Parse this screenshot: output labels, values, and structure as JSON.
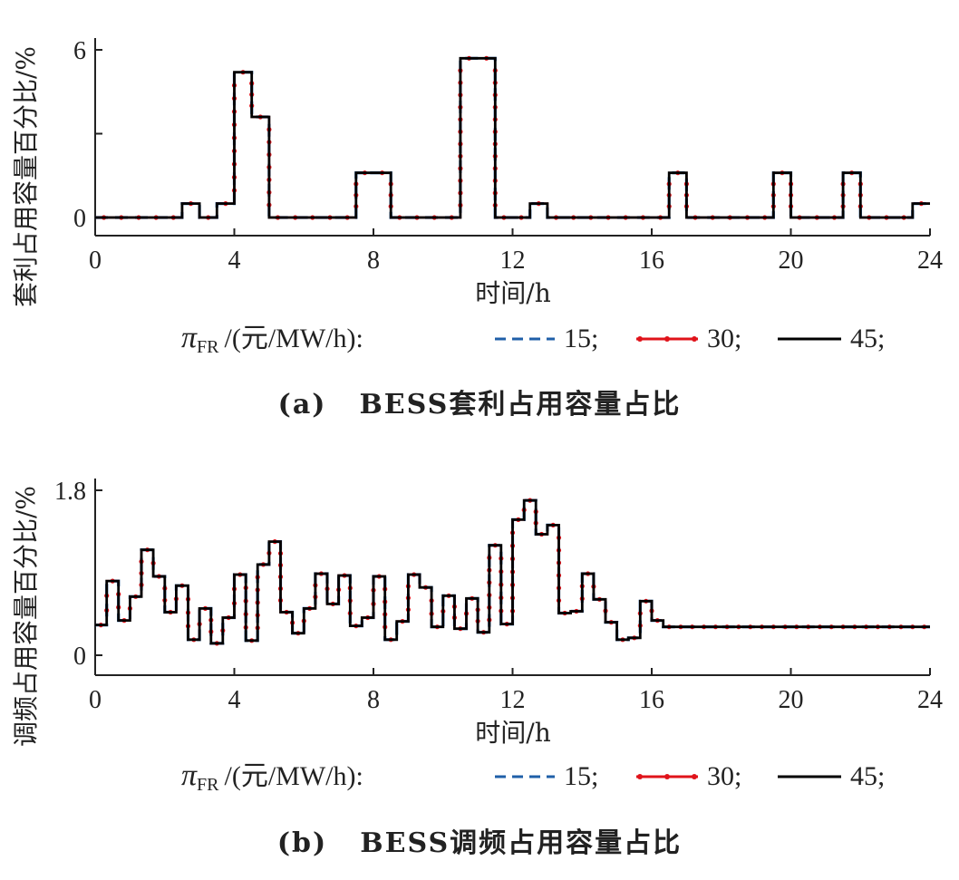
{
  "chart_data": [
    {
      "type": "line",
      "step": true,
      "ylabel": "套利占用容量百分比/%",
      "xlabel": "时间/h",
      "xlim": [
        0,
        24
      ],
      "xticks": [
        "0",
        "4",
        "8",
        "12",
        "16",
        "20",
        "24"
      ],
      "ylim": [
        -0.6,
        6
      ],
      "yticks": [
        "0",
        "",
        "6"
      ],
      "ytick_values": [
        0,
        3,
        6
      ],
      "legend": {
        "prefix_symbol": "π",
        "prefix_sub": "FR",
        "prefix_unit": "/(元/MW/h):",
        "entries": [
          "15;",
          "30;",
          "45;"
        ]
      },
      "x": [
        0,
        0.5,
        1,
        1.5,
        2,
        2.5,
        3,
        3.5,
        4,
        4.5,
        5,
        5.5,
        6,
        6.5,
        7,
        7.5,
        8,
        8.5,
        9,
        9.5,
        10,
        10.5,
        11,
        11.5,
        12,
        12.5,
        13,
        13.5,
        14,
        14.5,
        15,
        15.5,
        16,
        16.5,
        17,
        17.5,
        18,
        18.5,
        19,
        19.5,
        20,
        20.5,
        21,
        21.5,
        22,
        22.5,
        23,
        23.5
      ],
      "series": [
        {
          "name": "15",
          "color": "#1f5fa8",
          "dash": "dashed",
          "values": [
            0,
            0,
            0,
            0,
            0,
            0.5,
            0,
            0.5,
            5.2,
            3.6,
            0,
            0,
            0,
            0,
            0,
            1.6,
            1.6,
            0,
            0,
            0,
            0,
            5.7,
            5.7,
            0,
            0,
            0.5,
            0,
            0,
            0,
            0,
            0,
            0,
            0,
            1.6,
            0,
            0,
            0,
            0,
            0,
            1.6,
            0,
            0,
            0,
            1.6,
            0,
            0,
            0,
            0.5
          ]
        },
        {
          "name": "30",
          "color": "#e0131a",
          "dash": "dotline",
          "values": [
            0,
            0,
            0,
            0,
            0,
            0.5,
            0,
            0.5,
            5.2,
            3.6,
            0,
            0,
            0,
            0,
            0,
            1.6,
            1.6,
            0,
            0,
            0,
            0,
            5.7,
            5.7,
            0,
            0,
            0.5,
            0,
            0,
            0,
            0,
            0,
            0,
            0,
            1.6,
            0,
            0,
            0,
            0,
            0,
            1.6,
            0,
            0,
            0,
            1.6,
            0,
            0,
            0,
            0.5
          ]
        },
        {
          "name": "45",
          "color": "#000000",
          "dash": "solid",
          "values": [
            0,
            0,
            0,
            0,
            0,
            0.5,
            0,
            0.5,
            5.2,
            3.6,
            0,
            0,
            0,
            0,
            0,
            1.6,
            1.6,
            0,
            0,
            0,
            0,
            5.7,
            5.7,
            0,
            0,
            0.5,
            0,
            0,
            0,
            0,
            0,
            0,
            0,
            1.6,
            0,
            0,
            0,
            0,
            0,
            1.6,
            0,
            0,
            0,
            1.6,
            0,
            0,
            0,
            0.5
          ]
        }
      ],
      "caption_label": "(a)",
      "caption_title": "BESS套利占用容量占比"
    },
    {
      "type": "line",
      "step": true,
      "ylabel": "调频占用容量百分比/%",
      "xlabel": "时间/h",
      "xlim": [
        0,
        24
      ],
      "xticks": [
        "0",
        "4",
        "8",
        "12",
        "16",
        "20",
        "24"
      ],
      "ylim": [
        -0.22,
        1.8
      ],
      "yticks": [
        "0",
        "1.8"
      ],
      "ytick_values": [
        0,
        1.8
      ],
      "legend": {
        "prefix_symbol": "π",
        "prefix_sub": "FR",
        "prefix_unit": "/(元/MW/h):",
        "entries": [
          "15;",
          "30;",
          "45;"
        ]
      },
      "x": [
        0,
        0.33,
        0.67,
        1,
        1.33,
        1.67,
        2,
        2.33,
        2.67,
        3,
        3.33,
        3.67,
        4,
        4.33,
        4.67,
        5,
        5.33,
        5.67,
        6,
        6.33,
        6.67,
        7,
        7.33,
        7.67,
        8,
        8.33,
        8.67,
        9,
        9.33,
        9.67,
        10,
        10.33,
        10.67,
        11,
        11.33,
        11.67,
        12,
        12.33,
        12.67,
        13,
        13.33,
        13.67,
        14,
        14.33,
        14.67,
        15,
        15.33,
        15.67,
        16,
        16.33,
        16.67,
        17,
        17.33,
        17.67,
        18,
        18.33,
        18.67,
        19,
        19.33,
        19.67,
        20,
        20.33,
        20.67,
        21,
        21.33,
        21.67,
        22,
        22.33,
        22.67,
        23,
        23.33,
        23.67
      ],
      "series": [
        {
          "name": "15",
          "color": "#1f5fa8",
          "dash": "dashed",
          "values": [
            0.33,
            0.81,
            0.38,
            0.64,
            1.15,
            0.86,
            0.47,
            0.76,
            0.17,
            0.51,
            0.13,
            0.41,
            0.88,
            0.16,
            0.99,
            1.24,
            0.47,
            0.24,
            0.51,
            0.89,
            0.56,
            0.87,
            0.32,
            0.41,
            0.86,
            0.17,
            0.37,
            0.88,
            0.74,
            0.31,
            0.65,
            0.29,
            0.62,
            0.25,
            1.2,
            0.34,
            1.48,
            1.69,
            1.32,
            1.42,
            0.46,
            0.48,
            0.89,
            0.61,
            0.36,
            0.17,
            0.19,
            0.59,
            0.38,
            0.31,
            0.31,
            0.31,
            0.31,
            0.31,
            0.31,
            0.31,
            0.31,
            0.31,
            0.31,
            0.31,
            0.31,
            0.31,
            0.31,
            0.31,
            0.31,
            0.31,
            0.31,
            0.31,
            0.31,
            0.31,
            0.31,
            0.31
          ]
        },
        {
          "name": "30",
          "color": "#e0131a",
          "dash": "dotline",
          "values": [
            0.33,
            0.81,
            0.38,
            0.64,
            1.15,
            0.86,
            0.47,
            0.76,
            0.17,
            0.51,
            0.13,
            0.41,
            0.88,
            0.16,
            0.99,
            1.24,
            0.47,
            0.24,
            0.51,
            0.89,
            0.56,
            0.87,
            0.32,
            0.41,
            0.86,
            0.17,
            0.37,
            0.88,
            0.74,
            0.31,
            0.65,
            0.29,
            0.62,
            0.25,
            1.2,
            0.34,
            1.48,
            1.69,
            1.32,
            1.42,
            0.46,
            0.48,
            0.89,
            0.61,
            0.36,
            0.17,
            0.19,
            0.59,
            0.38,
            0.31,
            0.31,
            0.31,
            0.31,
            0.31,
            0.31,
            0.31,
            0.31,
            0.31,
            0.31,
            0.31,
            0.31,
            0.31,
            0.31,
            0.31,
            0.31,
            0.31,
            0.31,
            0.31,
            0.31,
            0.31,
            0.31,
            0.31
          ]
        },
        {
          "name": "45",
          "color": "#000000",
          "dash": "solid",
          "values": [
            0.33,
            0.81,
            0.38,
            0.64,
            1.15,
            0.86,
            0.47,
            0.76,
            0.17,
            0.51,
            0.13,
            0.41,
            0.88,
            0.16,
            0.99,
            1.24,
            0.47,
            0.24,
            0.51,
            0.89,
            0.56,
            0.87,
            0.32,
            0.41,
            0.86,
            0.17,
            0.37,
            0.88,
            0.74,
            0.31,
            0.65,
            0.29,
            0.62,
            0.25,
            1.2,
            0.34,
            1.48,
            1.69,
            1.32,
            1.42,
            0.46,
            0.48,
            0.89,
            0.61,
            0.36,
            0.17,
            0.19,
            0.59,
            0.38,
            0.31,
            0.31,
            0.31,
            0.31,
            0.31,
            0.31,
            0.31,
            0.31,
            0.31,
            0.31,
            0.31,
            0.31,
            0.31,
            0.31,
            0.31,
            0.31,
            0.31,
            0.31,
            0.31,
            0.31,
            0.31,
            0.31,
            0.31
          ]
        }
      ],
      "caption_label": "(b)",
      "caption_title": "BESS调频占用容量占比"
    }
  ]
}
